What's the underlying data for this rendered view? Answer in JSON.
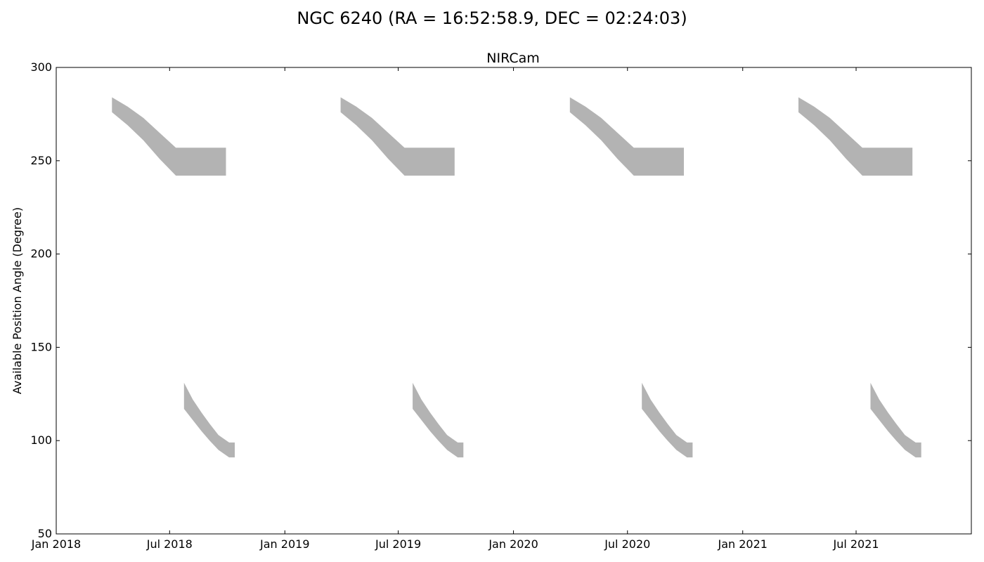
{
  "figure_title": "NGC 6240 (RA = 16:52:58.9, DEC = 02:24:03)",
  "chart_data": {
    "type": "area",
    "title": "NIRCam",
    "xlabel": "",
    "ylabel": "Available Position Angle (Degree)",
    "x_axis": "date",
    "xlim": [
      "2018-01-01",
      "2022-01-01"
    ],
    "ylim": [
      50,
      300
    ],
    "x_ticks": [
      {
        "date": "2018-01-01",
        "label": "Jan 2018"
      },
      {
        "date": "2018-07-01",
        "label": "Jul 2018"
      },
      {
        "date": "2019-01-01",
        "label": "Jan 2019"
      },
      {
        "date": "2019-07-01",
        "label": "Jul 2019"
      },
      {
        "date": "2020-01-01",
        "label": "Jan 2020"
      },
      {
        "date": "2020-07-01",
        "label": "Jul 2020"
      },
      {
        "date": "2021-01-01",
        "label": "Jan 2021"
      },
      {
        "date": "2021-07-01",
        "label": "Jul 2021"
      }
    ],
    "y_ticks": [
      50,
      100,
      150,
      200,
      250,
      300
    ],
    "grid": false,
    "legend": "none",
    "fill_color": "#b3b3b3",
    "windows": [
      {
        "x": [
          "2018-03-31",
          "2018-04-25",
          "2018-05-20",
          "2018-06-15",
          "2018-07-11",
          "2018-08-05",
          "2018-08-31",
          "2018-09-29"
        ],
        "y_low": [
          276,
          269,
          261,
          251,
          242,
          242,
          242,
          242
        ],
        "y_high": [
          284,
          279,
          273,
          265,
          257,
          257,
          257,
          257
        ]
      },
      {
        "x": [
          "2018-07-24",
          "2018-08-07",
          "2018-08-21",
          "2018-09-03",
          "2018-09-17",
          "2018-10-04",
          "2018-10-13"
        ],
        "y_low": [
          117,
          111,
          105,
          100,
          95,
          91,
          91
        ],
        "y_high": [
          131,
          122,
          115,
          109,
          103,
          99,
          99
        ]
      },
      {
        "x": [
          "2019-03-31",
          "2019-04-25",
          "2019-05-20",
          "2019-06-15",
          "2019-07-11",
          "2019-08-05",
          "2019-08-31",
          "2019-09-29"
        ],
        "y_low": [
          276,
          269,
          261,
          251,
          242,
          242,
          242,
          242
        ],
        "y_high": [
          284,
          279,
          273,
          265,
          257,
          257,
          257,
          257
        ]
      },
      {
        "x": [
          "2019-07-24",
          "2019-08-07",
          "2019-08-21",
          "2019-09-03",
          "2019-09-17",
          "2019-10-04",
          "2019-10-13"
        ],
        "y_low": [
          117,
          111,
          105,
          100,
          95,
          91,
          91
        ],
        "y_high": [
          131,
          122,
          115,
          109,
          103,
          99,
          99
        ]
      },
      {
        "x": [
          "2020-03-31",
          "2020-04-25",
          "2020-05-20",
          "2020-06-15",
          "2020-07-11",
          "2020-08-05",
          "2020-08-31",
          "2020-09-29"
        ],
        "y_low": [
          276,
          269,
          261,
          251,
          242,
          242,
          242,
          242
        ],
        "y_high": [
          284,
          279,
          273,
          265,
          257,
          257,
          257,
          257
        ]
      },
      {
        "x": [
          "2020-07-24",
          "2020-08-07",
          "2020-08-21",
          "2020-09-03",
          "2020-09-17",
          "2020-10-04",
          "2020-10-13"
        ],
        "y_low": [
          117,
          111,
          105,
          100,
          95,
          91,
          91
        ],
        "y_high": [
          131,
          122,
          115,
          109,
          103,
          99,
          99
        ]
      },
      {
        "x": [
          "2021-03-31",
          "2021-04-25",
          "2021-05-20",
          "2021-06-15",
          "2021-07-11",
          "2021-08-05",
          "2021-08-31",
          "2021-09-29"
        ],
        "y_low": [
          276,
          269,
          261,
          251,
          242,
          242,
          242,
          242
        ],
        "y_high": [
          284,
          279,
          273,
          265,
          257,
          257,
          257,
          257
        ]
      },
      {
        "x": [
          "2021-07-24",
          "2021-08-07",
          "2021-08-21",
          "2021-09-03",
          "2021-09-17",
          "2021-10-04",
          "2021-10-13"
        ],
        "y_low": [
          117,
          111,
          105,
          100,
          95,
          91,
          91
        ],
        "y_high": [
          131,
          122,
          115,
          109,
          103,
          99,
          99
        ]
      }
    ]
  }
}
